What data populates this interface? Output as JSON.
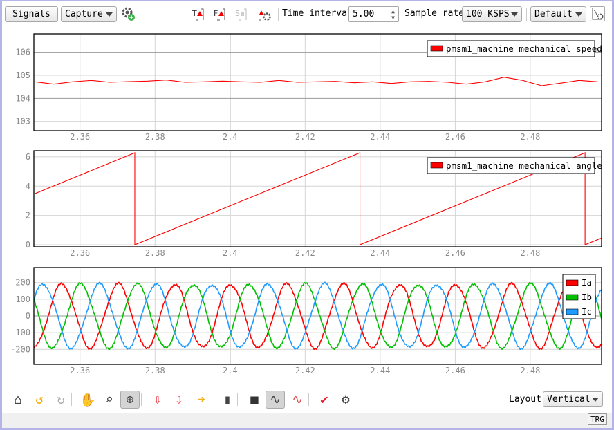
{
  "toolbar": {
    "signals_label": "Signals",
    "capture_label": "Capture",
    "time_interval_label": "Time interval",
    "time_interval_value": "5.00",
    "sample_rate_label": "Sample rate",
    "sample_rate_value": "100 KSPS",
    "preset_value": "Default",
    "trigger_icons": [
      "T",
      "F",
      "S"
    ]
  },
  "bottom_toolbar": {
    "layout_label": "Layout",
    "layout_value": "Vertical",
    "icons": [
      "home-icon",
      "undo-icon",
      "redo-icon",
      "pan-icon",
      "zoom-region-icon",
      "zoom-axis-icon",
      "export-data-icon",
      "export-image-icon",
      "export-other-icon",
      "histogram-icon",
      "background-icon",
      "cursor-icon",
      "trigger-line-icon",
      "check-icon",
      "plot-settings-icon"
    ]
  },
  "status": {
    "trg_label": "TRG"
  },
  "chart_data": [
    {
      "type": "line",
      "xlim": [
        2.3477,
        2.499
      ],
      "ylim": [
        102.6,
        106.8
      ],
      "xticks": [
        "2.36",
        "2.38",
        "2.4",
        "2.42",
        "2.44",
        "2.46",
        "2.48"
      ],
      "yticks": [
        "103",
        "104",
        "105",
        "106"
      ],
      "grid": true,
      "legend_position": "top-right",
      "series": [
        {
          "name": "pmsm1_machine mechanical speed",
          "color": "#ff0000",
          "x": [
            2.348,
            2.353,
            2.358,
            2.363,
            2.368,
            2.373,
            2.378,
            2.383,
            2.388,
            2.393,
            2.398,
            2.403,
            2.408,
            2.413,
            2.418,
            2.423,
            2.428,
            2.433,
            2.438,
            2.443,
            2.448,
            2.453,
            2.458,
            2.463,
            2.468,
            2.473,
            2.478,
            2.483,
            2.488,
            2.493,
            2.498
          ],
          "y": [
            104.72,
            104.62,
            104.72,
            104.78,
            104.7,
            104.73,
            104.75,
            104.8,
            104.7,
            104.72,
            104.75,
            104.72,
            104.7,
            104.78,
            104.7,
            104.72,
            104.74,
            104.68,
            104.72,
            104.65,
            104.72,
            104.74,
            104.7,
            104.62,
            104.72,
            104.92,
            104.78,
            104.55,
            104.66,
            104.78,
            104.72
          ]
        }
      ]
    },
    {
      "type": "line",
      "xlim": [
        2.3477,
        2.499
      ],
      "ylim": [
        -0.14,
        6.42
      ],
      "xticks": [
        "2.36",
        "2.38",
        "2.4",
        "2.42",
        "2.44",
        "2.46",
        "2.48"
      ],
      "yticks": [
        "0",
        "2",
        "4",
        "6"
      ],
      "grid": true,
      "legend_position": "top-right",
      "series": [
        {
          "name": "pmsm1_machine mechanical angle",
          "color": "#ff0000",
          "x": [
            2.3477,
            2.3746,
            2.3746,
            2.4346,
            2.4346,
            2.4946,
            2.4946,
            2.499
          ],
          "y": [
            3.46,
            6.28,
            0,
            6.28,
            0,
            6.28,
            0,
            0.46
          ]
        }
      ]
    },
    {
      "type": "line",
      "xlim": [
        2.3477,
        2.499
      ],
      "ylim": [
        -290,
        290
      ],
      "xticks": [
        "2.36",
        "2.38",
        "2.4",
        "2.42",
        "2.44",
        "2.46",
        "2.48"
      ],
      "yticks": [
        "-200",
        "-100",
        "0",
        "100",
        "200"
      ],
      "grid": true,
      "legend_position": "top-right",
      "series": [
        {
          "name": "Ia",
          "color": "#ff0000",
          "amplitude": 190,
          "frequency_hz": 66.7,
          "peak_time": 2.3552,
          "phase_deg": 0
        },
        {
          "name": "Ib",
          "color": "#00c000",
          "amplitude": 190,
          "frequency_hz": 66.7,
          "peak_time": 2.3552,
          "phase_deg": -120
        },
        {
          "name": "Ic",
          "color": "#1e9bff",
          "amplitude": 190,
          "frequency_hz": 66.7,
          "peak_time": 2.3552,
          "phase_deg": 120
        }
      ]
    }
  ]
}
